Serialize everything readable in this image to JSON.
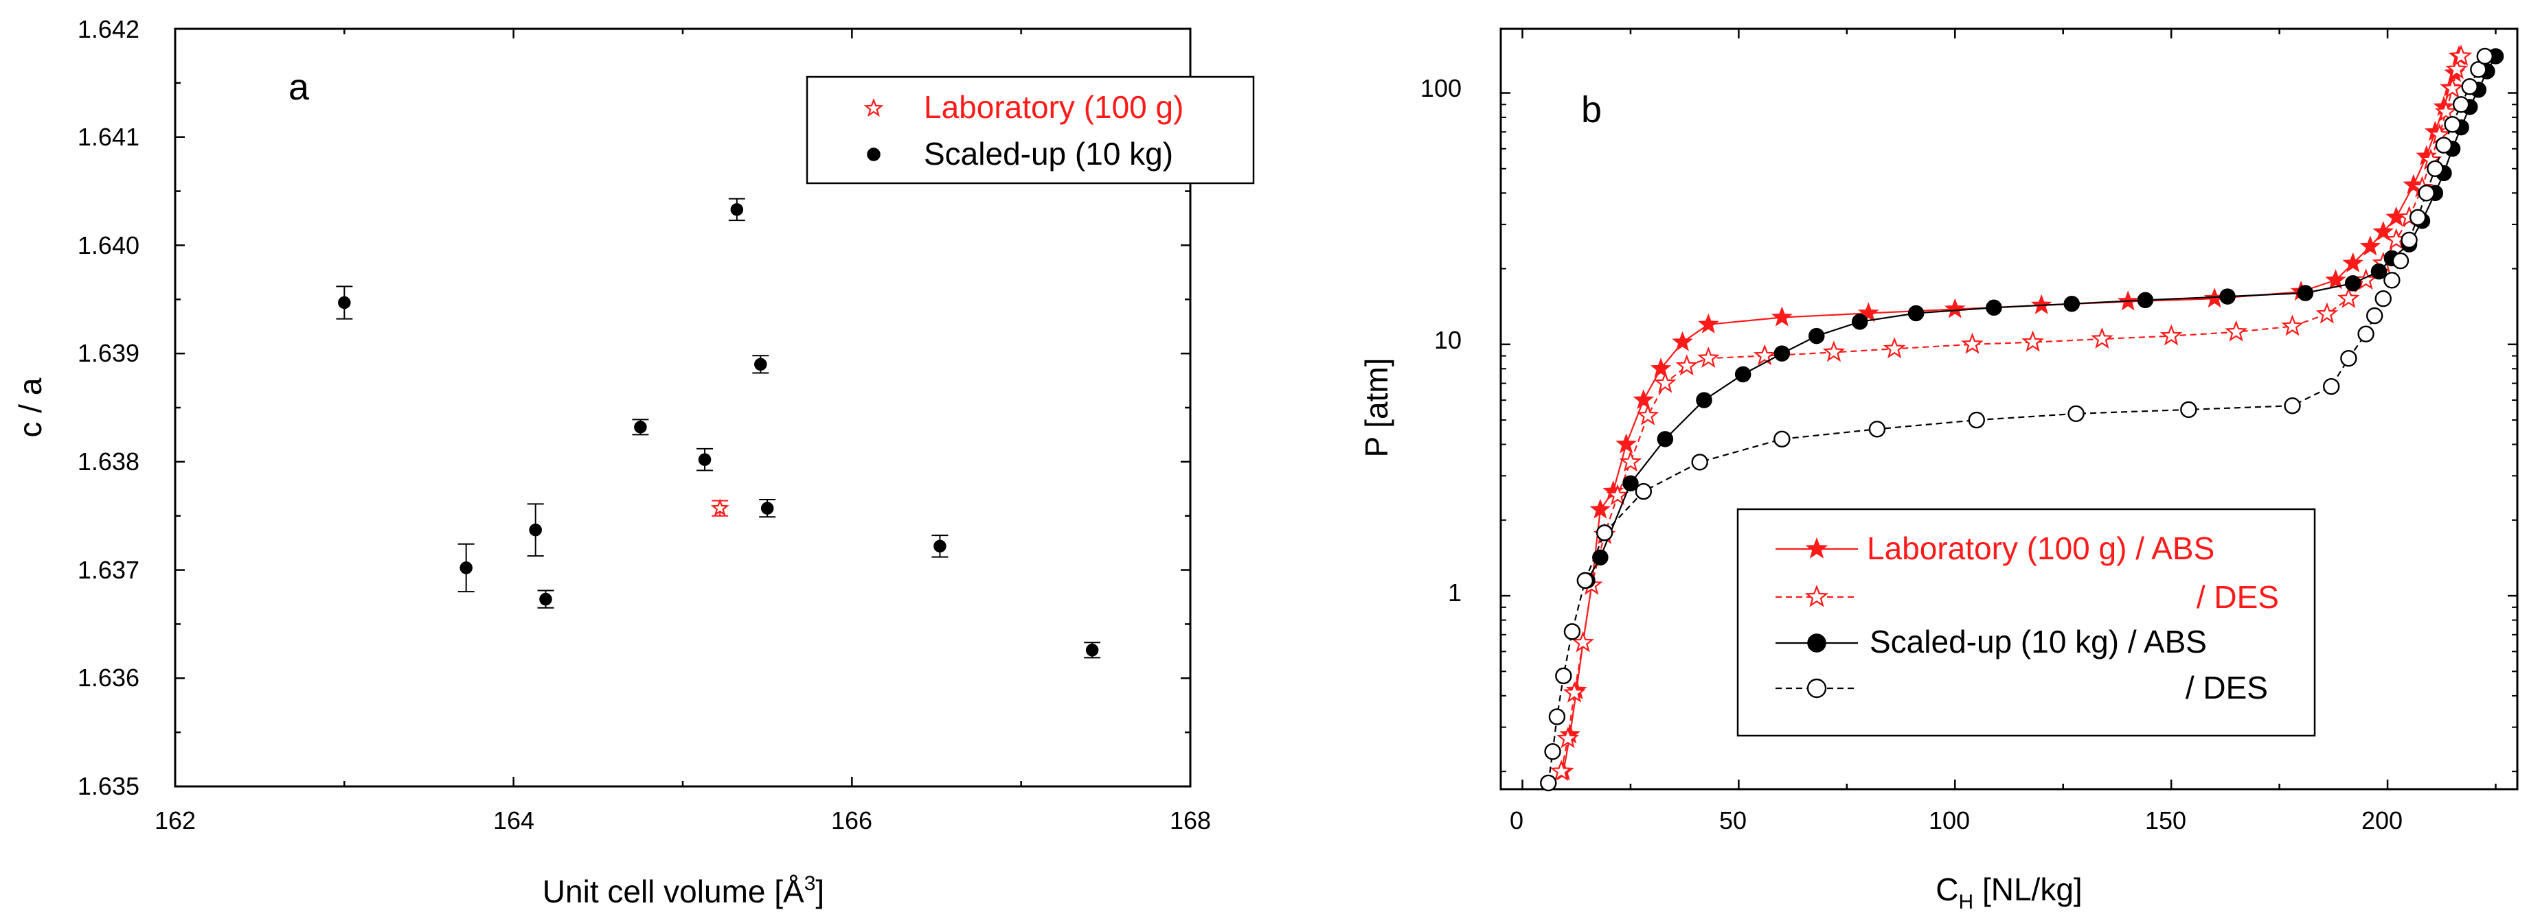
{
  "colors": {
    "red": "#ff1a1a",
    "black": "#000000"
  },
  "chart_data": [
    {
      "panel_label": "a",
      "type": "scatter",
      "xlabel_text": "Unit cell volume [Å",
      "xlabel_sup": "3",
      "xlabel_close": "]",
      "ylabel": "c / a",
      "xlim": [
        162,
        168
      ],
      "ylim": [
        1.635,
        1.642
      ],
      "xticks": [
        "162",
        "164",
        "166",
        "168"
      ],
      "yticks": [
        "1.635",
        "1.636",
        "1.637",
        "1.638",
        "1.639",
        "1.640",
        "1.641",
        "1.642"
      ],
      "legend": [
        {
          "label": "Laboratory (100 g)",
          "marker": "open-star",
          "color": "#ff1a1a"
        },
        {
          "label": "Scaled-up (10 kg)",
          "marker": "filled-circle",
          "color": "#000000"
        }
      ],
      "series": [
        {
          "name": "Laboratory (100 g)",
          "points": [
            {
              "x": 165.22,
              "y": 1.63757,
              "err": 7e-05
            }
          ]
        },
        {
          "name": "Scaled-up (10 kg)",
          "points": [
            {
              "x": 163.0,
              "y": 1.63947,
              "err": 0.00015
            },
            {
              "x": 163.72,
              "y": 1.63702,
              "err": 0.00022
            },
            {
              "x": 164.13,
              "y": 1.63737,
              "err": 0.00024
            },
            {
              "x": 164.19,
              "y": 1.63673,
              "err": 8e-05
            },
            {
              "x": 164.75,
              "y": 1.63832,
              "err": 7e-05
            },
            {
              "x": 165.13,
              "y": 1.63802,
              "err": 0.0001
            },
            {
              "x": 165.32,
              "y": 1.64033,
              "err": 0.0001
            },
            {
              "x": 165.46,
              "y": 1.6389,
              "err": 8e-05
            },
            {
              "x": 165.5,
              "y": 1.63757,
              "err": 8e-05
            },
            {
              "x": 166.52,
              "y": 1.63722,
              "err": 0.0001
            },
            {
              "x": 167.42,
              "y": 1.63626,
              "err": 7e-05
            }
          ]
        }
      ]
    },
    {
      "panel_label": "b",
      "type": "line",
      "yscale": "log",
      "xlabel_main": "C",
      "xlabel_sub": "H",
      "xlabel_rest": " [NL/kg]",
      "ylabel": "P [atm]",
      "xlim": [
        -5,
        230
      ],
      "ylim": [
        0.17,
        180
      ],
      "xticks": [
        0,
        50,
        100,
        150,
        200
      ],
      "xtick_labels": [
        "0",
        "50",
        "100",
        "150",
        "200"
      ],
      "yticks": [
        1,
        10,
        100
      ],
      "ytick_labels": [
        "1",
        "10",
        "100"
      ],
      "legend": [
        {
          "label": "Laboratory (100 g) / ABS",
          "marker": "filled-star",
          "line": "solid",
          "color": "#ff1a1a"
        },
        {
          "label": "/ DES",
          "marker": "open-star",
          "line": "dashed",
          "color": "#ff1a1a"
        },
        {
          "label": "Scaled-up (10 kg) / ABS",
          "marker": "filled-circle",
          "line": "solid",
          "color": "#000000"
        },
        {
          "label": "/ DES",
          "marker": "open-circle",
          "line": "dashed",
          "color": "#000000"
        }
      ],
      "series": [
        {
          "name": "Laboratory (100 g) / ABS",
          "marker": "filled-star",
          "line": "solid",
          "color": "#ff1a1a",
          "points": [
            [
              9.5,
              0.2
            ],
            [
              11,
              0.28
            ],
            [
              12.5,
              0.42
            ],
            [
              14,
              0.65
            ],
            [
              16,
              1.1
            ],
            [
              18,
              2.2
            ],
            [
              21,
              2.6
            ],
            [
              24,
              4
            ],
            [
              28,
              6
            ],
            [
              32,
              8
            ],
            [
              37,
              10.2
            ],
            [
              43,
              12
            ],
            [
              60,
              12.8
            ],
            [
              80,
              13.3
            ],
            [
              100,
              13.8
            ],
            [
              120,
              14.3
            ],
            [
              140,
              14.8
            ],
            [
              160,
              15.2
            ],
            [
              180,
              16.2
            ],
            [
              188,
              18
            ],
            [
              192,
              21
            ],
            [
              196,
              24.5
            ],
            [
              199,
              28
            ],
            [
              202,
              32
            ],
            [
              206,
              43
            ],
            [
              209,
              56
            ],
            [
              211,
              70
            ],
            [
              213,
              88
            ],
            [
              214.5,
              105
            ],
            [
              215.5,
              120
            ],
            [
              216.5,
              140
            ]
          ]
        },
        {
          "name": "/ DES",
          "marker": "open-star",
          "line": "dashed",
          "color": "#ff1a1a",
          "points": [
            [
              9,
              0.2
            ],
            [
              10.5,
              0.27
            ],
            [
              12,
              0.41
            ],
            [
              14,
              0.65
            ],
            [
              16,
              1.1
            ],
            [
              19,
              1.75
            ],
            [
              22,
              2.5
            ],
            [
              25,
              3.4
            ],
            [
              29,
              5.2
            ],
            [
              33,
              7
            ],
            [
              38,
              8.2
            ],
            [
              43,
              8.8
            ],
            [
              56,
              9
            ],
            [
              72,
              9.3
            ],
            [
              86,
              9.6
            ],
            [
              104,
              10
            ],
            [
              118,
              10.2
            ],
            [
              134,
              10.5
            ],
            [
              150,
              10.8
            ],
            [
              165,
              11.2
            ],
            [
              178,
              11.8
            ],
            [
              186,
              13.2
            ],
            [
              191,
              15.2
            ],
            [
              195,
              18
            ],
            [
              199,
              21
            ],
            [
              202,
              26
            ],
            [
              205,
              32
            ],
            [
              208,
              42
            ],
            [
              210,
              54
            ],
            [
              212,
              68
            ],
            [
              213.5,
              84
            ],
            [
              215,
              104
            ],
            [
              216,
              124
            ],
            [
              217,
              140
            ]
          ]
        },
        {
          "name": "Scaled-up (10 kg) / ABS",
          "marker": "filled-circle",
          "line": "solid",
          "color": "#000000",
          "points": [
            [
              15,
              1.15
            ],
            [
              18,
              1.42
            ],
            [
              25,
              2.8
            ],
            [
              33,
              4.2
            ],
            [
              42,
              6
            ],
            [
              51,
              7.6
            ],
            [
              60,
              9.2
            ],
            [
              68,
              10.8
            ],
            [
              78,
              12.3
            ],
            [
              91,
              13.3
            ],
            [
              109,
              14
            ],
            [
              127,
              14.5
            ],
            [
              144,
              15
            ],
            [
              163,
              15.5
            ],
            [
              181,
              16
            ],
            [
              192,
              17.5
            ],
            [
              198,
              19.5
            ],
            [
              201,
              22
            ],
            [
              205,
              25
            ],
            [
              208,
              31
            ],
            [
              211,
              40
            ],
            [
              213,
              48
            ],
            [
              215,
              60
            ],
            [
              217,
              73
            ],
            [
              219,
              88
            ],
            [
              221,
              103
            ],
            [
              223,
              122
            ],
            [
              225,
              140
            ]
          ]
        },
        {
          "name": "/ DES",
          "marker": "open-circle",
          "line": "dashed",
          "color": "#000000",
          "points": [
            [
              6,
              0.18
            ],
            [
              7,
              0.24
            ],
            [
              8,
              0.33
            ],
            [
              9.5,
              0.48
            ],
            [
              11.5,
              0.72
            ],
            [
              14.5,
              1.15
            ],
            [
              19,
              1.78
            ],
            [
              28,
              2.6
            ],
            [
              41,
              3.4
            ],
            [
              60,
              4.2
            ],
            [
              82,
              4.6
            ],
            [
              105,
              5
            ],
            [
              128,
              5.3
            ],
            [
              154,
              5.5
            ],
            [
              178,
              5.7
            ],
            [
              187,
              6.8
            ],
            [
              191,
              8.8
            ],
            [
              195,
              11
            ],
            [
              197,
              13
            ],
            [
              199,
              15.2
            ],
            [
              201,
              18
            ],
            [
              203,
              21.5
            ],
            [
              205,
              26
            ],
            [
              207,
              32
            ],
            [
              209,
              40
            ],
            [
              211,
              50
            ],
            [
              213,
              62
            ],
            [
              215,
              75
            ],
            [
              217,
              90
            ],
            [
              219,
              106
            ],
            [
              221,
              124
            ],
            [
              222.5,
              140
            ]
          ]
        }
      ]
    }
  ]
}
